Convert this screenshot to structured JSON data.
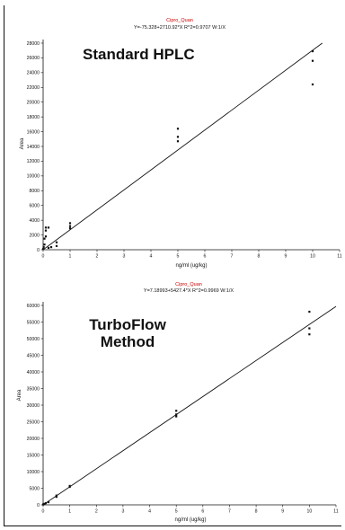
{
  "chart_data": [
    {
      "type": "scatter",
      "series_name": "Cipro_Quan",
      "equation": "Y=-75.328+2710.92*X R^2=0.9707 W:1/X",
      "annotation": "Standard HPLC",
      "xlabel": "ng/ml (ug/kg)",
      "ylabel": "Area",
      "xlim": [
        0,
        11
      ],
      "ylim": [
        0,
        28000
      ],
      "xticks": [
        "0",
        "1",
        "2",
        "3",
        "4",
        "5",
        "6",
        "7",
        "8",
        "9",
        "10",
        "11"
      ],
      "yticks": [
        "0",
        "2000",
        "4000",
        "6000",
        "8000",
        "10000",
        "12000",
        "14000",
        "16000",
        "18000",
        "20000",
        "22000",
        "24000",
        "26000",
        "28000"
      ],
      "fit_line": {
        "intercept": -75.328,
        "slope": 2710.92
      },
      "points": [
        {
          "x": 0.0,
          "y": 100
        },
        {
          "x": 0.02,
          "y": 350
        },
        {
          "x": 0.05,
          "y": 700
        },
        {
          "x": 0.05,
          "y": 1500
        },
        {
          "x": 0.1,
          "y": 1800
        },
        {
          "x": 0.1,
          "y": 2600
        },
        {
          "x": 0.1,
          "y": 3000
        },
        {
          "x": 0.2,
          "y": 3000
        },
        {
          "x": 0.2,
          "y": 250
        },
        {
          "x": 0.3,
          "y": 350
        },
        {
          "x": 0.5,
          "y": 500
        },
        {
          "x": 0.5,
          "y": 1000
        },
        {
          "x": 1.0,
          "y": 2900
        },
        {
          "x": 1.0,
          "y": 3200
        },
        {
          "x": 1.0,
          "y": 3600
        },
        {
          "x": 5.0,
          "y": 14700
        },
        {
          "x": 5.0,
          "y": 15300
        },
        {
          "x": 5.0,
          "y": 16400
        },
        {
          "x": 10.0,
          "y": 22400
        },
        {
          "x": 10.0,
          "y": 25600
        },
        {
          "x": 10.0,
          "y": 26900
        }
      ]
    },
    {
      "type": "scatter",
      "series_name": "Cipro_Quan",
      "equation": "Y=7.18993+5427.4*X R^2=0.9969 W:1/X",
      "annotation": [
        "TurboFlow",
        "Method"
      ],
      "xlabel": "ng/ml (ug/kg)",
      "ylabel": "Area",
      "xlim": [
        0,
        11
      ],
      "ylim": [
        0,
        60000
      ],
      "xticks": [
        "0",
        "1",
        "2",
        "3",
        "4",
        "5",
        "6",
        "7",
        "8",
        "9",
        "10",
        "11"
      ],
      "yticks": [
        "0",
        "5000",
        "10000",
        "15000",
        "20000",
        "25000",
        "30000",
        "35000",
        "40000",
        "45000",
        "50000",
        "55000",
        "60000"
      ],
      "fit_line": {
        "intercept": 7.18993,
        "slope": 5427.4
      },
      "points": [
        {
          "x": 0.0,
          "y": 100
        },
        {
          "x": 0.02,
          "y": 200
        },
        {
          "x": 0.05,
          "y": 300
        },
        {
          "x": 0.1,
          "y": 500
        },
        {
          "x": 0.2,
          "y": 800
        },
        {
          "x": 0.5,
          "y": 2400
        },
        {
          "x": 0.5,
          "y": 2800
        },
        {
          "x": 1.0,
          "y": 5400
        },
        {
          "x": 1.0,
          "y": 5700
        },
        {
          "x": 5.0,
          "y": 26600
        },
        {
          "x": 5.0,
          "y": 27200
        },
        {
          "x": 5.0,
          "y": 28300
        },
        {
          "x": 10.0,
          "y": 51300
        },
        {
          "x": 10.0,
          "y": 53100
        },
        {
          "x": 10.0,
          "y": 58100
        }
      ]
    }
  ]
}
